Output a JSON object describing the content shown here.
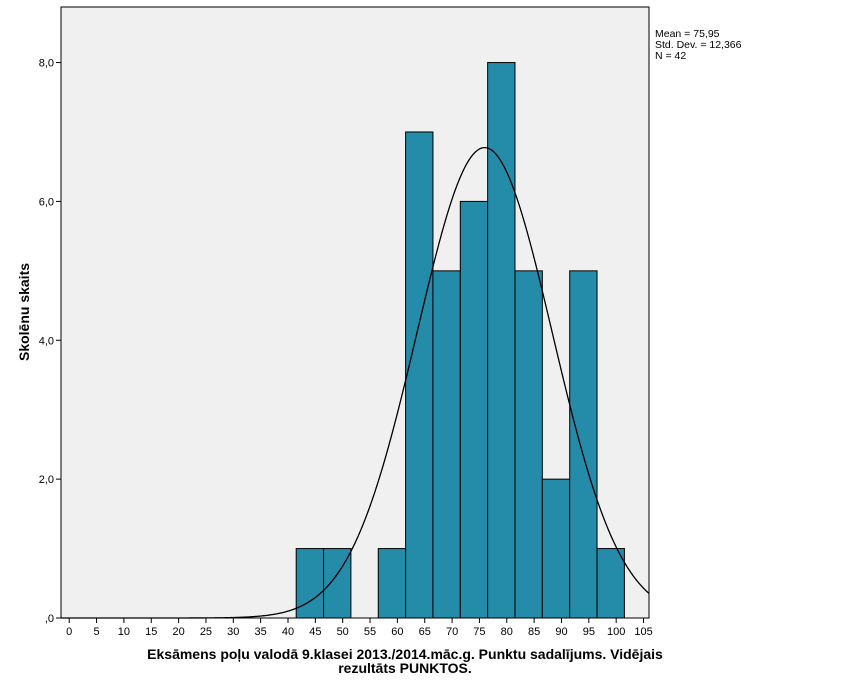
{
  "chart_data": {
    "type": "bar",
    "subtype": "histogram",
    "xlabel_lines": [
      "Eksāmens poļu valodā 9.klasei 2013./2014.māc.g. Punktu sadalījums. Vidējais",
      "rezultāts PUNKTOS."
    ],
    "ylabel": "Skolēnu skaits",
    "x_ticks": [
      "0",
      "5",
      "10",
      "15",
      "20",
      "25",
      "30",
      "35",
      "40",
      "45",
      "50",
      "55",
      "60",
      "65",
      "70",
      "75",
      "80",
      "85",
      "90",
      "95",
      "100",
      "105"
    ],
    "y_ticks": [
      {
        "value": 0,
        "label": ",0"
      },
      {
        "value": 2,
        "label": "2,0"
      },
      {
        "value": 4,
        "label": "4,0"
      },
      {
        "value": 6,
        "label": "6,0"
      },
      {
        "value": 8,
        "label": "8,0"
      }
    ],
    "xlim": [
      -1.5,
      106
    ],
    "ylim": [
      0,
      8.8
    ],
    "bins": [
      {
        "start": 41.5,
        "end": 46.5,
        "count": 1
      },
      {
        "start": 46.5,
        "end": 51.5,
        "count": 1
      },
      {
        "start": 51.5,
        "end": 56.5,
        "count": 0
      },
      {
        "start": 56.5,
        "end": 61.5,
        "count": 1
      },
      {
        "start": 61.5,
        "end": 66.5,
        "count": 7
      },
      {
        "start": 66.5,
        "end": 71.5,
        "count": 5
      },
      {
        "start": 71.5,
        "end": 76.5,
        "count": 6
      },
      {
        "start": 76.5,
        "end": 81.5,
        "count": 8
      },
      {
        "start": 81.5,
        "end": 86.5,
        "count": 5
      },
      {
        "start": 86.5,
        "end": 91.5,
        "count": 2
      },
      {
        "start": 91.5,
        "end": 96.5,
        "count": 5
      },
      {
        "start": 96.5,
        "end": 101.5,
        "count": 1
      }
    ],
    "normal_curve": {
      "mean": 75.95,
      "std_dev": 12.366,
      "n": 42,
      "bin_width": 5
    },
    "stats_text": [
      "Mean = 75,95",
      "Std. Dev. = 12,366",
      "N = 42"
    ],
    "colors": {
      "bar_fill": "#248ba9",
      "bar_stroke": "#000000",
      "plot_background": "#f0f0f0",
      "curve": "#000000"
    },
    "grid": false,
    "legend": "none"
  }
}
